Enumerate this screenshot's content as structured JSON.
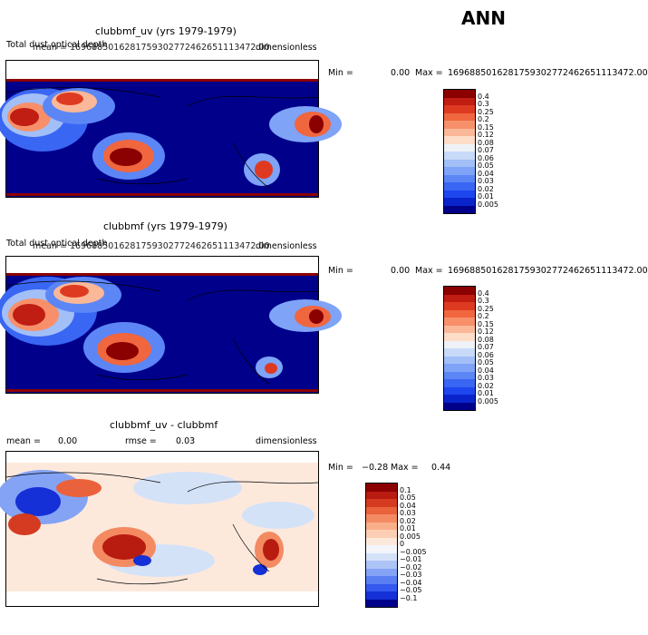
{
  "header": {
    "season": "ANN"
  },
  "panels": [
    {
      "title": "clubbmf_uv (yrs 1979-1979)",
      "var_label": "Total dust optical depth",
      "mean_text": "mean = 1696885016281759302772462651113472.00",
      "units": "dimensionless",
      "min_label": "Min =",
      "min_value": "0.00",
      "max_label": "Max =",
      "max_value": "1696885016281759302772462651113472.00"
    },
    {
      "title": "clubbmf (yrs 1979-1979)",
      "var_label": "Total dust optical depth",
      "mean_text": "mean = 1696885016281759302772462651113472.00",
      "units": "dimensionless",
      "min_label": "Min =",
      "min_value": "0.00",
      "max_label": "Max =",
      "max_value": "1696885016281759302772462651113472.00"
    },
    {
      "title": "clubbmf_uv - clubbmf",
      "mean_text": "mean =",
      "mean_value": "0.00",
      "rmse_text": "rmse =",
      "rmse_value": "0.03",
      "units": "dimensionless",
      "min_label": "Min =",
      "min_value": "−0.28",
      "max_label": "Max =",
      "max_value": "0.44"
    }
  ],
  "chart_data": [
    {
      "type": "heatmap",
      "name": "clubbmf_uv",
      "colorbar_levels": [
        "0.005",
        "0.01",
        "0.02",
        "0.03",
        "0.04",
        "0.05",
        "0.06",
        "0.07",
        "0.08",
        "0.12",
        "0.15",
        "0.2",
        "0.25",
        "0.3",
        "0.4"
      ],
      "colorbar_colors": [
        "#00008b",
        "#0a24cc",
        "#1e46ef",
        "#3a66f4",
        "#5c86f6",
        "#7ea3f7",
        "#a2bff8",
        "#c8daf8",
        "#eef2f6",
        "#fddcc8",
        "#fbb898",
        "#f7906a",
        "#f0663f",
        "#de3a22",
        "#c01d13",
        "#8b0000"
      ]
    },
    {
      "type": "heatmap",
      "name": "clubbmf",
      "colorbar_levels": [
        "0.005",
        "0.01",
        "0.02",
        "0.03",
        "0.04",
        "0.05",
        "0.06",
        "0.07",
        "0.08",
        "0.12",
        "0.15",
        "0.2",
        "0.25",
        "0.3",
        "0.4"
      ],
      "colorbar_colors": [
        "#00008b",
        "#0a24cc",
        "#1e46ef",
        "#3a66f4",
        "#5c86f6",
        "#7ea3f7",
        "#a2bff8",
        "#c8daf8",
        "#eef2f6",
        "#fddcc8",
        "#fbb898",
        "#f7906a",
        "#f0663f",
        "#de3a22",
        "#c01d13",
        "#8b0000"
      ]
    },
    {
      "type": "heatmap",
      "name": "clubbmf_uv - clubbmf",
      "colorbar_levels": [
        "−0.1",
        "−0.05",
        "−0.04",
        "−0.03",
        "−0.02",
        "−0.01",
        "−0.005",
        "0",
        "0.005",
        "0.01",
        "0.02",
        "0.03",
        "0.04",
        "0.05",
        "0.1"
      ],
      "colorbar_colors": [
        "#00008b",
        "#1430d6",
        "#3558ef",
        "#5a7ff3",
        "#84a3f5",
        "#adc4f7",
        "#d4e2f8",
        "#f3f5fb",
        "#fde9dc",
        "#fccfb4",
        "#f9ae8a",
        "#f48a62",
        "#ea623c",
        "#d43b20",
        "#b81b10",
        "#8b0000"
      ]
    }
  ]
}
